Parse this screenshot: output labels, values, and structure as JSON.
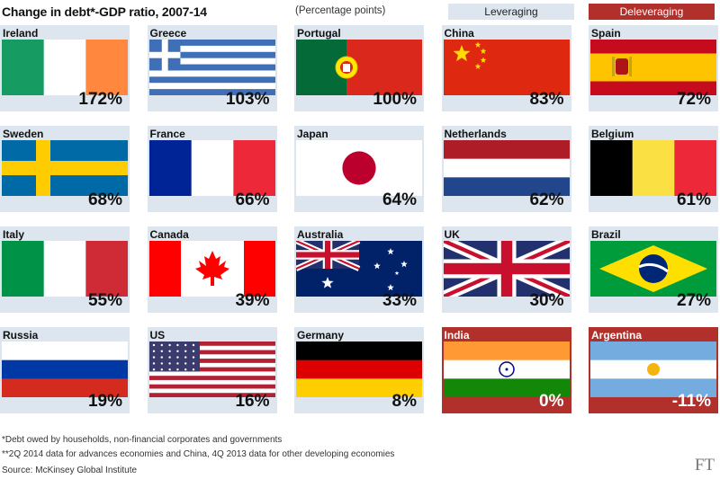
{
  "title": "Change in debt*-GDP ratio, 2007-14",
  "subtitle": "(Percentage points)",
  "legend": {
    "leveraging": {
      "label": "Leveraging",
      "color": "#dde6ee"
    },
    "deleveraging": {
      "label": "Deleveraging",
      "color": "#b1302b"
    }
  },
  "chart_data": {
    "type": "table",
    "categories": [
      "Ireland",
      "Greece",
      "Portugal",
      "China",
      "Spain",
      "Sweden",
      "France",
      "Japan",
      "Netherlands",
      "Belgium",
      "Italy",
      "Canada",
      "Australia",
      "UK",
      "Brazil",
      "Russia",
      "US",
      "Germany",
      "India",
      "Argentina"
    ],
    "values": [
      172,
      103,
      100,
      83,
      72,
      68,
      66,
      64,
      62,
      61,
      55,
      39,
      33,
      30,
      27,
      19,
      16,
      8,
      0,
      -11
    ],
    "value_labels": [
      "172%",
      "103%",
      "100%",
      "83%",
      "72%",
      "68%",
      "66%",
      "64%",
      "62%",
      "61%",
      "55%",
      "39%",
      "33%",
      "30%",
      "27%",
      "19%",
      "16%",
      "8%",
      "0%",
      "-11%"
    ],
    "status": [
      "leveraging",
      "leveraging",
      "leveraging",
      "leveraging",
      "leveraging",
      "leveraging",
      "leveraging",
      "leveraging",
      "leveraging",
      "leveraging",
      "leveraging",
      "leveraging",
      "leveraging",
      "leveraging",
      "leveraging",
      "leveraging",
      "leveraging",
      "leveraging",
      "deleveraging",
      "deleveraging"
    ],
    "flag_icons": [
      "ireland-flag-icon",
      "greece-flag-icon",
      "portugal-flag-icon",
      "china-flag-icon",
      "spain-flag-icon",
      "sweden-flag-icon",
      "france-flag-icon",
      "japan-flag-icon",
      "netherlands-flag-icon",
      "belgium-flag-icon",
      "italy-flag-icon",
      "canada-flag-icon",
      "australia-flag-icon",
      "uk-flag-icon",
      "brazil-flag-icon",
      "russia-flag-icon",
      "us-flag-icon",
      "germany-flag-icon",
      "india-flag-icon",
      "argentina-flag-icon"
    ],
    "layout": "grid-4-rows-5-cols"
  },
  "footnotes": [
    "*Debt owed by households, non-financial corporates and governments",
    "**2Q 2014 data for advances economies and China, 4Q 2013 data for other developing economies"
  ],
  "source": "Source: McKinsey Global Institute",
  "logo": "FT"
}
